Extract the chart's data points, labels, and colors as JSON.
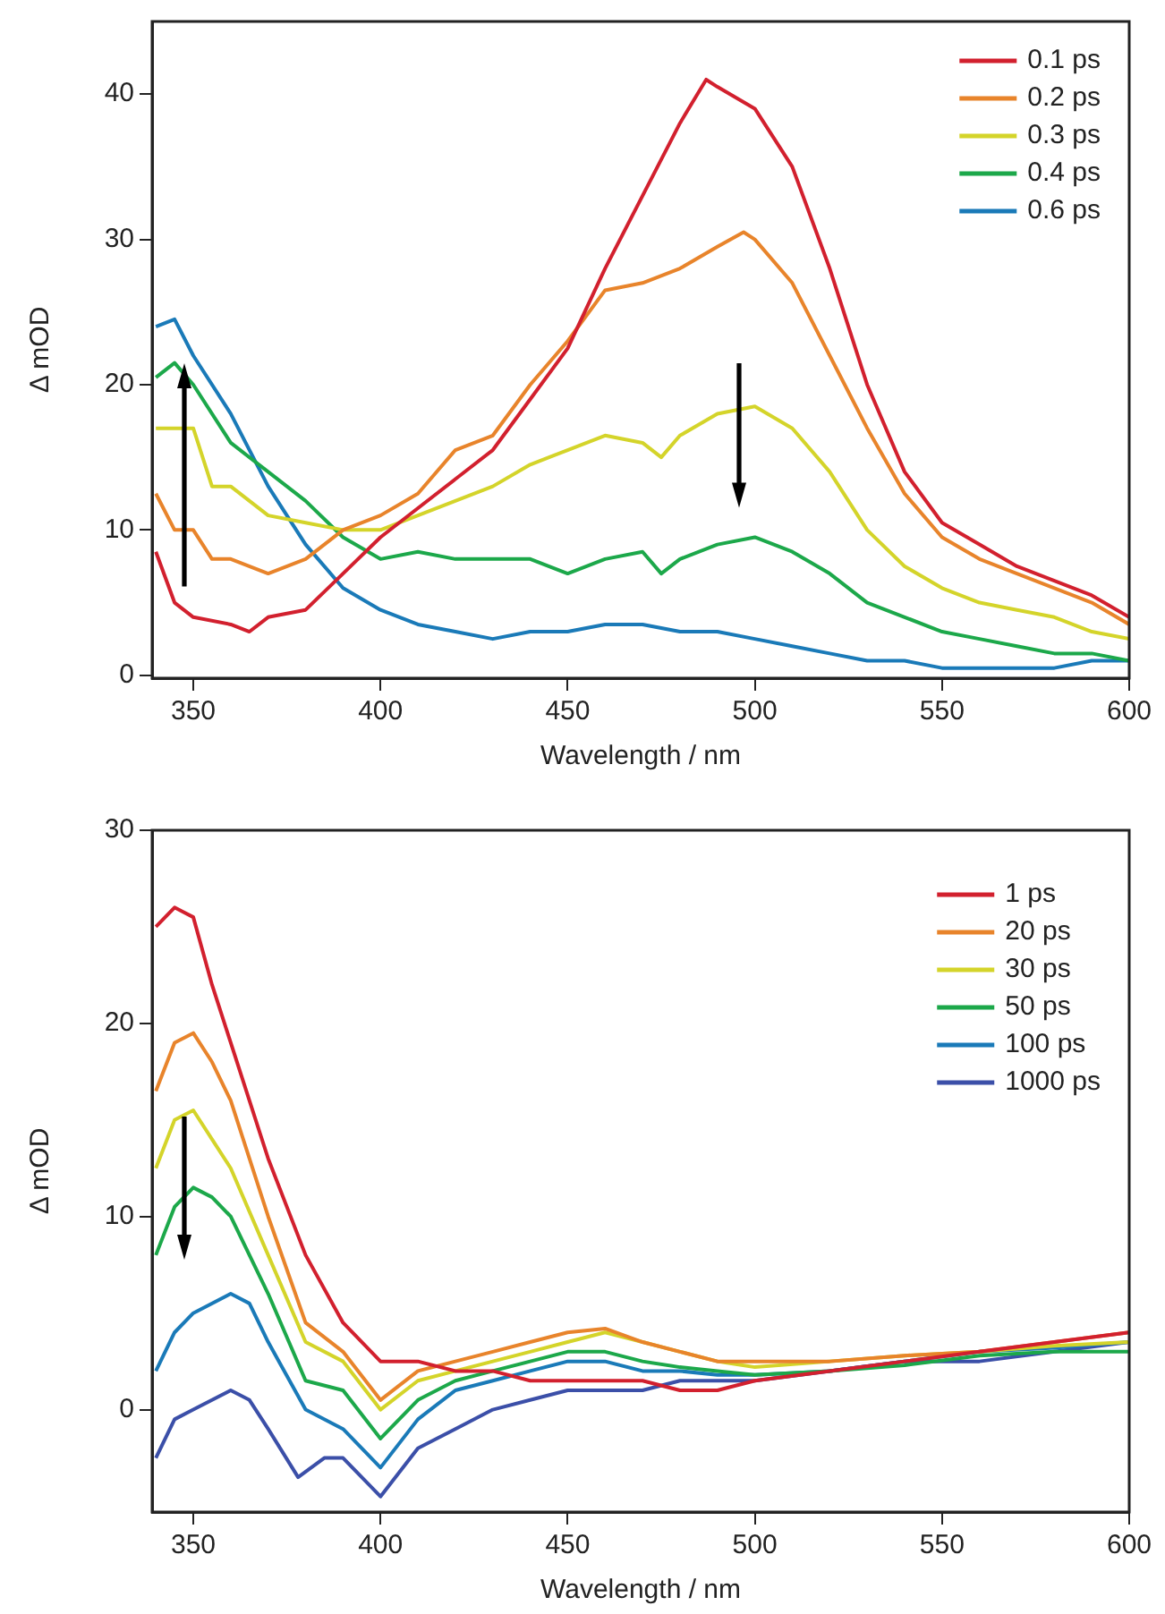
{
  "chart_data": [
    {
      "type": "line",
      "xlabel": "Wavelength / nm",
      "ylabel": "Δ mOD",
      "xlim": [
        339,
        600
      ],
      "xticks": [
        350,
        400,
        450,
        500,
        550,
        600
      ],
      "ylim": [
        -0.2,
        45
      ],
      "yticks": [
        0,
        10,
        20,
        30,
        40
      ],
      "grid": false,
      "legend": "top right",
      "marker": "none",
      "line_style": "solid",
      "series": [
        {
          "name": "0.1 ps",
          "color": "#d2202e",
          "x": [
            340,
            345,
            350,
            360,
            365,
            370,
            380,
            390,
            400,
            410,
            420,
            430,
            440,
            450,
            460,
            470,
            480,
            487,
            490,
            500,
            510,
            520,
            530,
            540,
            550,
            560,
            570,
            580,
            590,
            600
          ],
          "values": [
            8.5,
            5,
            4,
            3.5,
            3,
            4,
            4.5,
            7,
            9.5,
            11.5,
            13.5,
            15.5,
            19,
            22.5,
            28,
            33,
            38,
            41,
            40.5,
            39,
            35,
            28,
            20,
            14,
            10.5,
            9,
            7.5,
            6.5,
            5.5,
            4
          ]
        },
        {
          "name": "0.2 ps",
          "color": "#e8842b",
          "x": [
            340,
            345,
            350,
            355,
            360,
            370,
            380,
            390,
            400,
            410,
            420,
            430,
            440,
            450,
            460,
            470,
            480,
            490,
            497,
            500,
            510,
            520,
            530,
            540,
            550,
            560,
            570,
            580,
            590,
            600
          ],
          "values": [
            12.5,
            10,
            10,
            8,
            8,
            7,
            8,
            10,
            11,
            12.5,
            15.5,
            16.5,
            20,
            23,
            26.5,
            27,
            28,
            29.5,
            30.5,
            30,
            27,
            22,
            17,
            12.5,
            9.5,
            8,
            7,
            6,
            5,
            3.5
          ]
        },
        {
          "name": "0.3 ps",
          "color": "#d4d42a",
          "x": [
            340,
            350,
            355,
            360,
            370,
            380,
            390,
            400,
            410,
            420,
            430,
            440,
            450,
            460,
            470,
            475,
            480,
            490,
            500,
            510,
            520,
            530,
            540,
            550,
            560,
            570,
            580,
            590,
            600
          ],
          "values": [
            17,
            17,
            13,
            13,
            11,
            10.5,
            10,
            10,
            11,
            12,
            13,
            14.5,
            15.5,
            16.5,
            16,
            15,
            16.5,
            18,
            18.5,
            17,
            14,
            10,
            7.5,
            6,
            5,
            4.5,
            4,
            3,
            2.5
          ]
        },
        {
          "name": "0.4 ps",
          "color": "#1ca84a",
          "x": [
            340,
            345,
            350,
            360,
            370,
            380,
            390,
            400,
            410,
            420,
            430,
            440,
            450,
            460,
            470,
            475,
            480,
            490,
            500,
            510,
            520,
            530,
            540,
            550,
            560,
            570,
            580,
            590,
            600
          ],
          "values": [
            20.5,
            21.5,
            20,
            16,
            14,
            12,
            9.5,
            8,
            8.5,
            8,
            8,
            8,
            7,
            8,
            8.5,
            7,
            8,
            9,
            9.5,
            8.5,
            7,
            5,
            4,
            3,
            2.5,
            2,
            1.5,
            1.5,
            1
          ]
        },
        {
          "name": "0.6 ps",
          "color": "#1a7ab8",
          "x": [
            340,
            345,
            350,
            360,
            370,
            380,
            390,
            400,
            410,
            420,
            430,
            440,
            450,
            460,
            470,
            480,
            490,
            500,
            510,
            520,
            530,
            540,
            550,
            560,
            570,
            580,
            590,
            600
          ],
          "values": [
            24,
            24.5,
            22,
            18,
            13,
            9,
            6,
            4.5,
            3.5,
            3,
            2.5,
            3,
            3,
            3.5,
            3.5,
            3,
            3,
            2.5,
            2,
            1.5,
            1,
            1,
            0.5,
            0.5,
            0.5,
            0.5,
            1,
            1
          ]
        }
      ]
    },
    {
      "type": "line",
      "xlabel": "Wavelength / nm",
      "ylabel": "Δ mOD",
      "xlim": [
        339,
        600
      ],
      "xticks": [
        350,
        400,
        450,
        500,
        550,
        600
      ],
      "ylim": [
        -5.3,
        30
      ],
      "yticks": [
        0,
        10,
        20,
        30
      ],
      "grid": false,
      "legend": "top right",
      "marker": "none",
      "line_style": "solid",
      "series": [
        {
          "name": "1 ps",
          "color": "#d2202e",
          "x": [
            340,
            345,
            350,
            355,
            360,
            370,
            380,
            390,
            400,
            410,
            420,
            430,
            440,
            450,
            460,
            470,
            480,
            490,
            500,
            520,
            540,
            560,
            580,
            600
          ],
          "values": [
            25,
            26,
            25.5,
            22,
            19,
            13,
            8,
            4.5,
            2.5,
            2.5,
            2,
            2,
            1.5,
            1.5,
            1.5,
            1.5,
            1,
            1,
            1.5,
            2,
            2.5,
            3,
            3.5,
            4
          ]
        },
        {
          "name": "20 ps",
          "color": "#e8842b",
          "x": [
            340,
            345,
            350,
            355,
            360,
            370,
            380,
            390,
            400,
            410,
            420,
            430,
            440,
            450,
            460,
            470,
            480,
            490,
            500,
            520,
            540,
            560,
            580,
            600
          ],
          "values": [
            16.5,
            19,
            19.5,
            18,
            16,
            10,
            4.5,
            3,
            0.5,
            2,
            2.5,
            3,
            3.5,
            4,
            4.2,
            3.5,
            3,
            2.5,
            2.5,
            2.5,
            2.8,
            3,
            3.5,
            4
          ]
        },
        {
          "name": "30 ps",
          "color": "#d4d42a",
          "x": [
            340,
            345,
            350,
            355,
            360,
            370,
            380,
            390,
            400,
            410,
            420,
            430,
            440,
            450,
            460,
            470,
            480,
            490,
            500,
            520,
            540,
            560,
            580,
            600
          ],
          "values": [
            12.5,
            15,
            15.5,
            14,
            12.5,
            8,
            3.5,
            2.5,
            0,
            1.5,
            2,
            2.5,
            3,
            3.5,
            4,
            3.5,
            3,
            2.5,
            2.2,
            2.5,
            2.8,
            3,
            3.3,
            3.5
          ]
        },
        {
          "name": "50 ps",
          "color": "#1ca84a",
          "x": [
            340,
            345,
            350,
            355,
            360,
            370,
            380,
            390,
            400,
            410,
            420,
            430,
            440,
            450,
            460,
            470,
            480,
            490,
            500,
            520,
            540,
            560,
            580,
            600
          ],
          "values": [
            8,
            10.5,
            11.5,
            11,
            10,
            6,
            1.5,
            1,
            -1.5,
            0.5,
            1.5,
            2,
            2.5,
            3,
            3,
            2.5,
            2.2,
            2,
            1.8,
            2,
            2.3,
            2.8,
            3,
            3
          ]
        },
        {
          "name": "100 ps",
          "color": "#1a7ab8",
          "x": [
            340,
            345,
            350,
            360,
            365,
            370,
            380,
            390,
            400,
            410,
            420,
            430,
            440,
            450,
            460,
            470,
            480,
            490,
            500,
            520,
            540,
            560,
            580,
            600
          ],
          "values": [
            2,
            4,
            5,
            6,
            5.5,
            3.5,
            0,
            -1,
            -3,
            -0.5,
            1,
            1.5,
            2,
            2.5,
            2.5,
            2,
            2,
            1.8,
            1.8,
            2,
            2.5,
            3,
            3.2,
            3.5
          ]
        },
        {
          "name": "1000 ps",
          "color": "#3b4fa8",
          "x": [
            340,
            345,
            350,
            360,
            365,
            370,
            378,
            385,
            390,
            395,
            400,
            410,
            420,
            430,
            440,
            450,
            460,
            470,
            480,
            490,
            500,
            520,
            540,
            560,
            580,
            600
          ],
          "values": [
            -2.5,
            -0.5,
            0,
            1,
            0.5,
            -1,
            -3.5,
            -2.5,
            -2.5,
            -3.5,
            -4.5,
            -2,
            -1,
            0,
            0.5,
            1,
            1,
            1,
            1.5,
            1.5,
            1.5,
            2,
            2.5,
            2.5,
            3,
            3.5
          ]
        }
      ]
    }
  ]
}
